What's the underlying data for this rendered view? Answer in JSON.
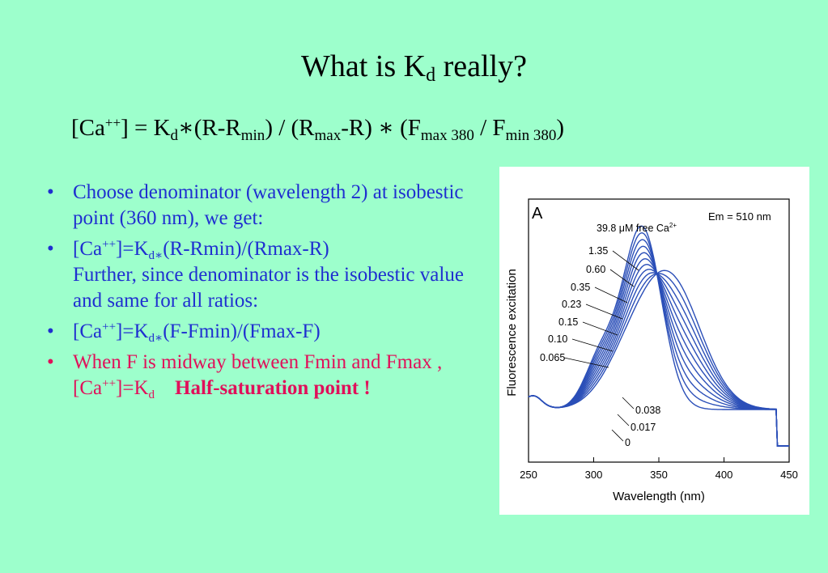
{
  "title": {
    "main": "What is K",
    "sub": "d",
    "end": " really?"
  },
  "formula": {
    "p1": "[Ca",
    "sup1": "++",
    "p2": "] = K",
    "sub1": "d",
    "p3": "∗(R-R",
    "sub2": "min",
    "p4": ") / (R",
    "sub3": "max",
    "p5": "-R) ∗ (F",
    "sub4": "max 380",
    "p6": " / F",
    "sub5": "min 380",
    "p7": ")"
  },
  "bullets": {
    "b1": "Choose denominator (wavelength 2) at isobestic point  (360 nm), we get:",
    "b2": {
      "p1": "[Ca",
      "sup": "++",
      "p2": "]=K",
      "sub": "d∗",
      "p3": "(R-Rmin)/(Rmax-R)",
      "p4": "Further, since denominator is the isobestic value and same for all ratios:"
    },
    "b3": {
      "p1": "[Ca",
      "sup": "++",
      "p2": "]=K",
      "sub": "d∗",
      "p3": "(F-Fmin)/(Fmax-F)"
    },
    "b4": {
      "p1": "When F is midway between Fmin and Fmax , [Ca",
      "sup": "++",
      "p2": "]=K",
      "sub": "d",
      "bold": "Half-saturation point !"
    }
  },
  "chart_data": {
    "type": "line",
    "panel_label": "A",
    "annotation_em": "Em = 510 nm",
    "legend_title": "39.8 μM free Ca",
    "legend_title_sup": "2+",
    "xlabel": "Wavelength (nm)",
    "ylabel": "Fluorescence excitation",
    "xlim": [
      250,
      450
    ],
    "xticks": [
      250,
      300,
      350,
      400,
      450
    ],
    "series_labels_top": [
      "1.35",
      "0.60",
      "0.35",
      "0.23",
      "0.15",
      "0.10",
      "0.065"
    ],
    "series_labels_bottom": [
      "0.038",
      "0.017",
      "0"
    ],
    "line_color": "#2b4fb8",
    "curves": [
      0,
      0.1,
      0.2,
      0.3,
      0.4,
      0.5,
      0.6,
      0.7,
      0.8,
      0.9,
      1.0
    ]
  }
}
